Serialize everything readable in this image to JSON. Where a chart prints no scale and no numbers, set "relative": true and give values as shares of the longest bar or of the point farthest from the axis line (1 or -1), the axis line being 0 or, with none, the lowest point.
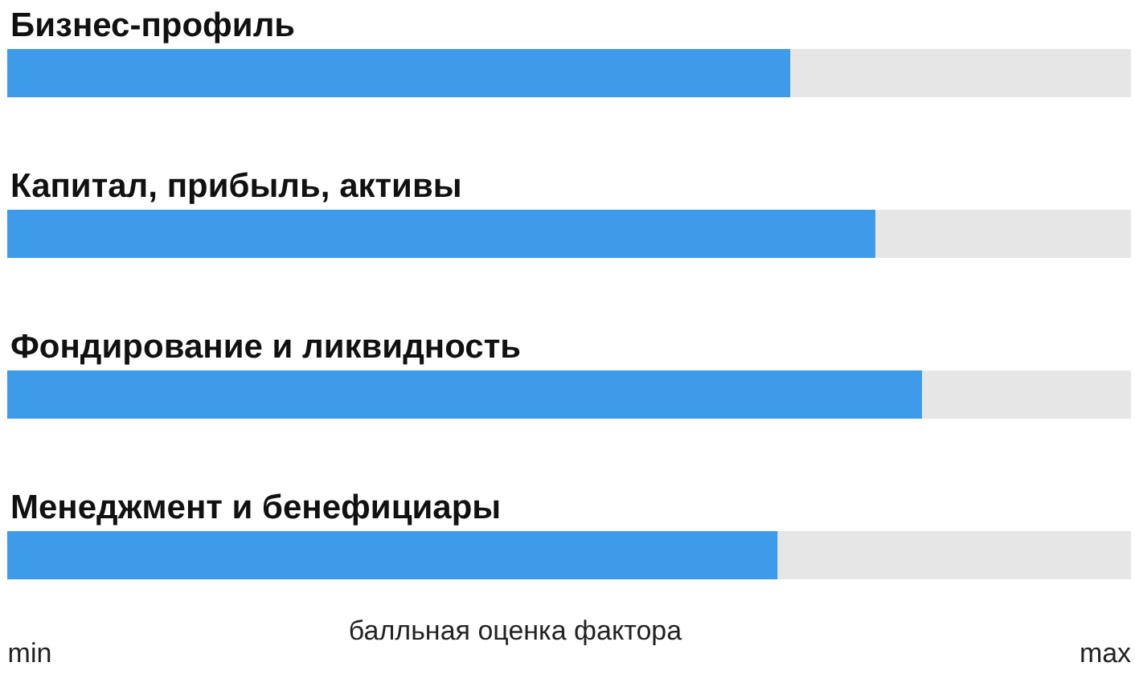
{
  "chart_data": {
    "type": "bar",
    "orientation": "horizontal",
    "relative": true,
    "categories": [
      "Бизнес-профиль",
      "Капитал, прибыль, активы",
      "Фондирование и ликвидность",
      "Менеджмент и бенефициары"
    ],
    "values": [
      0.856,
      0.949,
      1.0,
      0.842
    ],
    "color": "#3d9be9",
    "xlabel": "балльная оценка фактора",
    "annotations": [
      "min",
      "max"
    ]
  }
}
